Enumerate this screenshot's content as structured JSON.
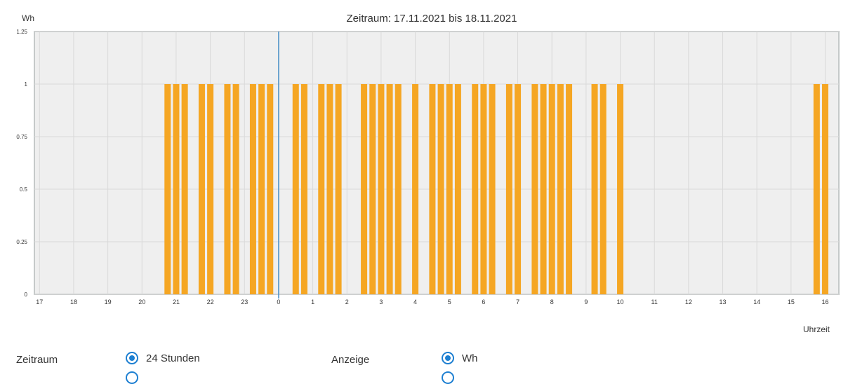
{
  "chart_data": {
    "type": "bar",
    "title": "Zeitraum: 17.11.2021 bis 18.11.2021",
    "ylabel": "Wh",
    "xlabel": "Uhrzeit",
    "ylim": [
      0,
      1.25
    ],
    "yticks": [
      "0",
      "0.25",
      "0.5",
      "0.75",
      "1",
      "1.25"
    ],
    "xticks": [
      "17",
      "18",
      "19",
      "20",
      "21",
      "22",
      "23",
      "0",
      "1",
      "2",
      "3",
      "4",
      "5",
      "6",
      "7",
      "8",
      "9",
      "10",
      "11",
      "12",
      "13",
      "14",
      "15",
      "16"
    ],
    "x_start_hour": 16.85,
    "x_end_hour": 40.4,
    "divider_hour": 24,
    "colors": {
      "bar": "#f5a623",
      "plot_bg": "#efefef",
      "grid": "#d9d9d9",
      "divider": "#4a90c8",
      "frame": "#c5c9c9"
    },
    "series": [
      {
        "x": [
          20.75,
          21.0,
          21.25,
          21.75,
          22.0,
          22.5,
          22.75,
          23.25,
          23.5,
          23.75,
          24.5,
          24.75,
          25.25,
          25.5,
          25.75,
          26.5,
          26.75,
          27.0,
          27.25,
          27.5,
          28.0,
          28.5,
          28.75,
          29.0,
          29.25,
          29.75,
          30.0,
          30.25,
          30.75,
          31.0,
          31.5,
          31.75,
          32.0,
          32.25,
          32.5,
          33.25,
          33.5,
          34.0,
          39.75,
          40.0
        ],
        "values": [
          1,
          1,
          1,
          1,
          1,
          1,
          1,
          1,
          1,
          1,
          1,
          1,
          1,
          1,
          1,
          1,
          1,
          1,
          1,
          1,
          1,
          1,
          1,
          1,
          1,
          1,
          1,
          1,
          1,
          1,
          1,
          1,
          1,
          1,
          1,
          1,
          1,
          1,
          1,
          1
        ]
      }
    ]
  },
  "controls": {
    "zeitraum_label": "Zeitraum",
    "zeitraum_option": "24 Stunden",
    "anzeige_label": "Anzeige",
    "anzeige_option": "Wh"
  }
}
